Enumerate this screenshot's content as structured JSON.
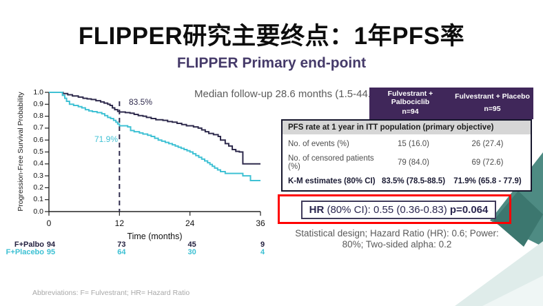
{
  "slide": {
    "title": "FLIPPER研究主要终点：1年PFS率",
    "subtitle": "FLIPPER Primary end-point",
    "median_followup": "Median follow-up 28.6 months (1.5-44.8)",
    "stat_design_line1": "Statistical design; Hazard Ratio (HR): 0.6; Power:",
    "stat_design_line2": "80%; Two-sided alpha: 0.2",
    "abbreviations": "Abbreviations: F= Fulvestrant; HR= Hazard Ratio"
  },
  "hr_box": {
    "hr_bold": "HR",
    "mid": " (80% CI): 0.55 (0.36-0.83) ",
    "p_bold": "p=0.064"
  },
  "results_table": {
    "columns": [
      {
        "name": "Fulvestrant + Palbociclib",
        "n": "n=94"
      },
      {
        "name": "Fulvestrant + Placebo",
        "n": "n=95"
      }
    ],
    "section_header": "PFS rate at 1 year in ITT population (primary objective)",
    "rows": [
      {
        "label": "No. of events (%)",
        "palbo": "15 (16.0)",
        "placebo": "26 (27.4)"
      },
      {
        "label": "No. of censored patients (%)",
        "palbo": "79 (84.0)",
        "placebo": "69 (72.6)"
      },
      {
        "label": "K-M estimates (80% CI)",
        "palbo": "83.5% (78.5-88.5)",
        "placebo": "71.9% (65.8 - 77.9)"
      }
    ]
  },
  "chart_data": {
    "type": "line",
    "subtype": "kaplan-meier-step",
    "xlabel": "Time (months)",
    "ylabel": "Progression-Free Survival Probability",
    "xlim": [
      0,
      36
    ],
    "ylim": [
      0.0,
      1.0
    ],
    "xticks": [
      0,
      12,
      24,
      36
    ],
    "yticks": [
      0.0,
      0.1,
      0.2,
      0.3,
      0.4,
      0.5,
      0.6,
      0.7,
      0.8,
      0.9,
      1.0
    ],
    "dashed_reference_x": 12,
    "annotations": {
      "palbo_label": "83.5%",
      "placebo_label": "71.9%"
    },
    "series": [
      {
        "name": "F+Palbo",
        "color": "#2e2a4c",
        "points": [
          [
            0,
            1.0
          ],
          [
            2,
            1.0
          ],
          [
            2.4,
            0.99
          ],
          [
            3.2,
            0.98
          ],
          [
            4,
            0.97
          ],
          [
            5,
            0.96
          ],
          [
            5.8,
            0.95
          ],
          [
            6.5,
            0.945
          ],
          [
            7.2,
            0.94
          ],
          [
            8,
            0.93
          ],
          [
            8.8,
            0.92
          ],
          [
            9.4,
            0.91
          ],
          [
            10,
            0.9
          ],
          [
            10.4,
            0.89
          ],
          [
            10.8,
            0.87
          ],
          [
            11.2,
            0.855
          ],
          [
            11.7,
            0.84
          ],
          [
            12,
            0.835
          ],
          [
            13,
            0.83
          ],
          [
            13.8,
            0.825
          ],
          [
            14.5,
            0.815
          ],
          [
            15.2,
            0.805
          ],
          [
            16,
            0.8
          ],
          [
            16.6,
            0.79
          ],
          [
            17.4,
            0.78
          ],
          [
            18.2,
            0.77
          ],
          [
            19.4,
            0.765
          ],
          [
            20.2,
            0.755
          ],
          [
            21,
            0.75
          ],
          [
            21.8,
            0.74
          ],
          [
            22.6,
            0.73
          ],
          [
            23.4,
            0.72
          ],
          [
            24.6,
            0.71
          ],
          [
            25.4,
            0.7
          ],
          [
            26,
            0.685
          ],
          [
            26.6,
            0.67
          ],
          [
            27.2,
            0.655
          ],
          [
            28,
            0.645
          ],
          [
            28.8,
            0.63
          ],
          [
            29.2,
            0.6
          ],
          [
            30,
            0.57
          ],
          [
            30.6,
            0.55
          ],
          [
            31.2,
            0.52
          ],
          [
            31.8,
            0.505
          ],
          [
            32.4,
            0.5
          ],
          [
            33,
            0.4
          ],
          [
            36,
            0.4
          ]
        ]
      },
      {
        "name": "F+Placebo",
        "color": "#3fc1d4",
        "points": [
          [
            0,
            1.0
          ],
          [
            2,
            1.0
          ],
          [
            2.3,
            0.975
          ],
          [
            2.7,
            0.95
          ],
          [
            3,
            0.925
          ],
          [
            3.5,
            0.9
          ],
          [
            4.2,
            0.89
          ],
          [
            5,
            0.88
          ],
          [
            5.6,
            0.87
          ],
          [
            6.2,
            0.855
          ],
          [
            6.8,
            0.845
          ],
          [
            7.4,
            0.838
          ],
          [
            8.2,
            0.83
          ],
          [
            9,
            0.82
          ],
          [
            9.5,
            0.805
          ],
          [
            10,
            0.79
          ],
          [
            10.5,
            0.78
          ],
          [
            11,
            0.765
          ],
          [
            11.4,
            0.75
          ],
          [
            11.7,
            0.735
          ],
          [
            12,
            0.72
          ],
          [
            13.4,
            0.71
          ],
          [
            13.9,
            0.68
          ],
          [
            14.5,
            0.67
          ],
          [
            15.4,
            0.66
          ],
          [
            16,
            0.65
          ],
          [
            16.8,
            0.64
          ],
          [
            17.4,
            0.63
          ],
          [
            18,
            0.615
          ],
          [
            18.6,
            0.6
          ],
          [
            19.2,
            0.59
          ],
          [
            19.8,
            0.58
          ],
          [
            20.4,
            0.57
          ],
          [
            21,
            0.56
          ],
          [
            21.5,
            0.55
          ],
          [
            22,
            0.54
          ],
          [
            22.5,
            0.53
          ],
          [
            23,
            0.52
          ],
          [
            23.5,
            0.51
          ],
          [
            24,
            0.5
          ],
          [
            24.5,
            0.485
          ],
          [
            25,
            0.47
          ],
          [
            25.5,
            0.455
          ],
          [
            26,
            0.44
          ],
          [
            26.5,
            0.425
          ],
          [
            27,
            0.41
          ],
          [
            27.4,
            0.395
          ],
          [
            27.8,
            0.38
          ],
          [
            28.2,
            0.365
          ],
          [
            28.7,
            0.35
          ],
          [
            29.2,
            0.335
          ],
          [
            30,
            0.32
          ],
          [
            33,
            0.3
          ],
          [
            34.3,
            0.26
          ],
          [
            36,
            0.26
          ]
        ]
      }
    ],
    "risk_table": {
      "times": [
        0,
        12,
        24,
        36
      ],
      "rows": [
        {
          "name": "F+Palbo",
          "color": "#23203f",
          "values": [
            "94",
            "73",
            "45",
            "9"
          ]
        },
        {
          "name": "F+Placebo",
          "color": "#3cc0d3",
          "values": [
            "95",
            "64",
            "30",
            "4"
          ]
        }
      ]
    }
  },
  "colors": {
    "accent_purple": "#40275a",
    "title_purple": "#453a69",
    "dark_series": "#2e2a4c",
    "cyan_series": "#3fc1d4",
    "red_highlight": "#ff0000",
    "gray_text": "#595959",
    "table_subheader_bg": "#d6d6d6",
    "deco_teal_medium": "#4e8b83",
    "deco_teal_dark": "#3c776f",
    "deco_teal_light1": "#dfecea",
    "deco_teal_light2": "#eff6f5"
  }
}
